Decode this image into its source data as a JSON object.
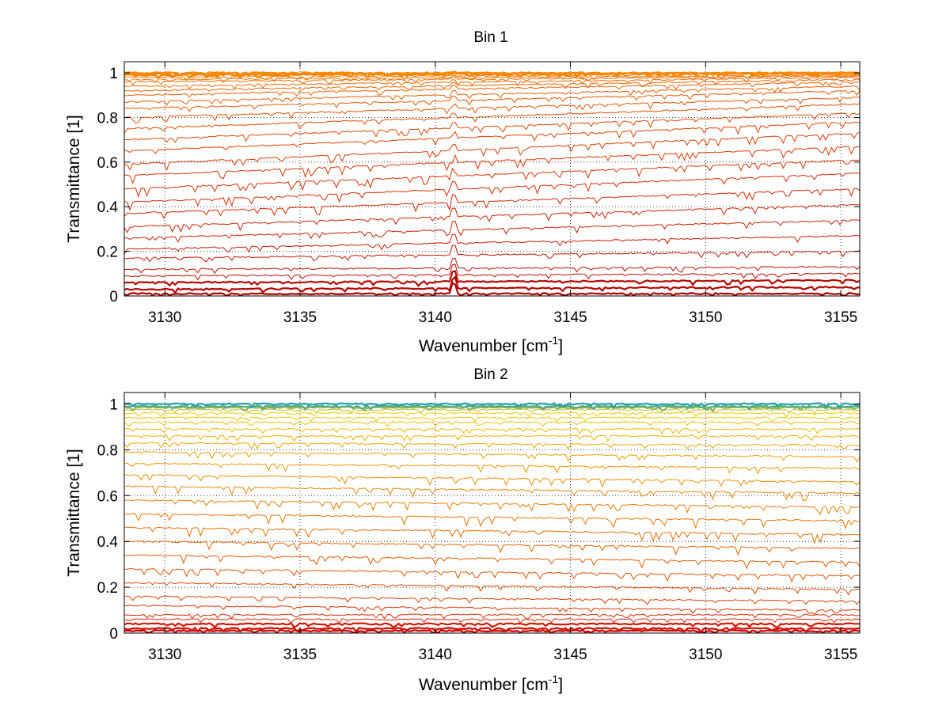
{
  "chart_data": [
    {
      "type": "line",
      "title": "Bin 1",
      "xlabel": "Wavenumber [cm",
      "xlabel_sup": "-1",
      "xlabel_end": "]",
      "ylabel": "Transmittance [1]",
      "xlim": [
        3128.5,
        3155.7
      ],
      "ylim": [
        0,
        1.05
      ],
      "x_ticks": [
        3130,
        3135,
        3140,
        3145,
        3150,
        3155
      ],
      "y_ticks": [
        0,
        0.2,
        0.4,
        0.6,
        0.8,
        1
      ],
      "y_tick_labels": [
        "0",
        "0.2",
        "0.4",
        "0.6",
        "0.8",
        "1"
      ],
      "grid": true,
      "series_levels_start": [
        0.01,
        0.03,
        0.06,
        0.09,
        0.12,
        0.17,
        0.21,
        0.26,
        0.31,
        0.37,
        0.42,
        0.48,
        0.54,
        0.59,
        0.65,
        0.7,
        0.75,
        0.8,
        0.84,
        0.87,
        0.9,
        0.92,
        0.94,
        0.96,
        0.97,
        0.98,
        0.99,
        0.995,
        1.0
      ],
      "series_levels_end": [
        0.01,
        0.04,
        0.07,
        0.1,
        0.13,
        0.2,
        0.27,
        0.34,
        0.41,
        0.48,
        0.55,
        0.61,
        0.67,
        0.73,
        0.78,
        0.82,
        0.86,
        0.89,
        0.92,
        0.94,
        0.96,
        0.97,
        0.98,
        0.985,
        0.99,
        0.995,
        1.0,
        1.0,
        1.0
      ],
      "spike_x": 3140.7,
      "colors": [
        "#b00000",
        "#c21200",
        "#d42a00",
        "#e04000",
        "#ea5a00",
        "#f27000",
        "#f88a00"
      ]
    },
    {
      "type": "line",
      "title": "Bin 2",
      "xlabel": "Wavenumber [cm",
      "xlabel_sup": "-1",
      "xlabel_end": "]",
      "ylabel": "Transmittance [1]",
      "xlim": [
        3128.5,
        3155.7
      ],
      "ylim": [
        0,
        1.05
      ],
      "x_ticks": [
        3130,
        3135,
        3140,
        3145,
        3150,
        3155
      ],
      "y_ticks": [
        0,
        0.2,
        0.4,
        0.6,
        0.8,
        1
      ],
      "y_tick_labels": [
        "0",
        "0.2",
        "0.4",
        "0.6",
        "0.8",
        "1"
      ],
      "grid": true,
      "series_levels_start": [
        0.01,
        0.02,
        0.04,
        0.06,
        0.08,
        0.12,
        0.16,
        0.22,
        0.28,
        0.34,
        0.4,
        0.46,
        0.52,
        0.58,
        0.64,
        0.69,
        0.74,
        0.79,
        0.83,
        0.86,
        0.89,
        0.92,
        0.94,
        0.96,
        0.975,
        0.985,
        0.99,
        1.0
      ],
      "series_levels_end": [
        0.01,
        0.02,
        0.04,
        0.06,
        0.08,
        0.1,
        0.14,
        0.19,
        0.25,
        0.31,
        0.37,
        0.43,
        0.49,
        0.55,
        0.61,
        0.66,
        0.72,
        0.77,
        0.82,
        0.86,
        0.89,
        0.92,
        0.94,
        0.96,
        0.975,
        0.985,
        0.99,
        1.0
      ],
      "colors": [
        "#d00000",
        "#dc2a00",
        "#e45000",
        "#ec7000",
        "#f29000",
        "#f6b000",
        "#f2cc00",
        "#20a0b0"
      ]
    }
  ]
}
